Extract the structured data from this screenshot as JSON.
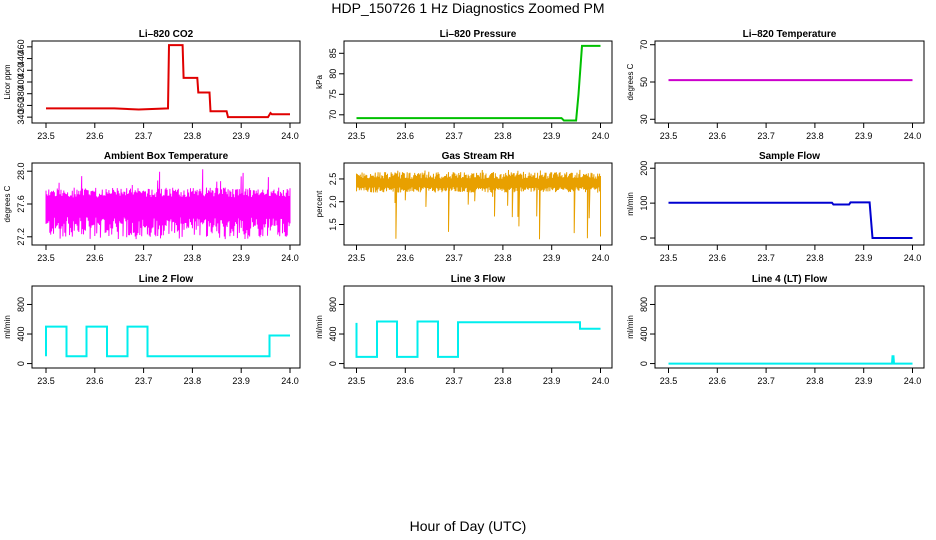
{
  "figure": {
    "title": "HDP_150726  1 Hz Diagnostics Zoomed PM",
    "xlabel": "Hour of Day (UTC)"
  },
  "chart_data": [
    {
      "type": "line",
      "title": "Li–820 CO2",
      "ylabel": "Licor ppm",
      "color": "#e00000",
      "xlim": [
        23.5,
        24.0
      ],
      "ylim": [
        330,
        470
      ],
      "xticks": [
        "23.5",
        "23.6",
        "23.7",
        "23.8",
        "23.9",
        "24.0"
      ],
      "yticks": [
        "340",
        "360",
        "380",
        "400",
        "420",
        "440",
        "460"
      ],
      "x": [
        23.5,
        23.58,
        23.64,
        23.69,
        23.75,
        23.752,
        23.78,
        23.782,
        23.81,
        23.812,
        23.835,
        23.837,
        23.87,
        23.873,
        23.95,
        23.955,
        23.96,
        23.963,
        24.0
      ],
      "y": [
        355,
        355,
        355,
        353,
        355,
        463,
        463,
        407,
        407,
        382,
        382,
        350,
        350,
        340,
        340,
        340,
        347,
        345,
        345
      ]
    },
    {
      "type": "line",
      "title": "Li–820 Pressure",
      "ylabel": "kPa",
      "color": "#00c000",
      "xlim": [
        23.5,
        24.0
      ],
      "ylim": [
        68,
        88
      ],
      "xticks": [
        "23.5",
        "23.6",
        "23.7",
        "23.8",
        "23.9",
        "24.0"
      ],
      "yticks": [
        "70",
        "75",
        "80",
        "85"
      ],
      "x": [
        23.5,
        23.92,
        23.925,
        23.95,
        23.955,
        23.962,
        23.97,
        24.0
      ],
      "y": [
        69.2,
        69.2,
        68.6,
        68.6,
        75,
        86.8,
        86.8,
        86.8
      ]
    },
    {
      "type": "line",
      "title": "Li–820 Temperature",
      "ylabel": "degrees C",
      "color": "#cc00cc",
      "xlim": [
        23.5,
        24.0
      ],
      "ylim": [
        28,
        72
      ],
      "xticks": [
        "23.5",
        "23.6",
        "23.7",
        "23.8",
        "23.9",
        "24.0"
      ],
      "yticks": [
        "30",
        "50",
        "70"
      ],
      "x": [
        23.5,
        24.0
      ],
      "y": [
        51,
        51
      ]
    },
    {
      "type": "line",
      "title": "Ambient Box Temperature",
      "ylabel": "degrees C",
      "color": "#ff00ff",
      "xlim": [
        23.5,
        24.0
      ],
      "ylim": [
        27.1,
        28.1
      ],
      "xticks": [
        "23.5",
        "23.6",
        "23.7",
        "23.8",
        "23.9",
        "24.0"
      ],
      "yticks": [
        "27.2",
        "27.6",
        "28.0"
      ],
      "x": [
        23.5,
        24.0
      ],
      "y": [
        27.6,
        27.6
      ],
      "noise": {
        "low": 27.2,
        "high": 27.8,
        "spike_low": 27.17,
        "spike_high": 28.03
      }
    },
    {
      "type": "line",
      "title": "Gas Stream RH",
      "ylabel": "percent",
      "color": "#e8a000",
      "xlim": [
        23.5,
        24.0
      ],
      "ylim": [
        1.05,
        2.85
      ],
      "xticks": [
        "23.5",
        "23.6",
        "23.7",
        "23.8",
        "23.9",
        "24.0"
      ],
      "yticks": [
        "1.5",
        "2.0",
        "2.5"
      ],
      "x": [
        23.5,
        24.0
      ],
      "y": [
        2.4,
        2.4
      ],
      "noise": {
        "low": 2.2,
        "high": 2.65,
        "spike_low": 1.15,
        "spike_high": 2.7
      }
    },
    {
      "type": "line",
      "title": "Sample Flow",
      "ylabel": "ml/min",
      "color": "#0000d0",
      "xlim": [
        23.5,
        24.0
      ],
      "ylim": [
        -20,
        215
      ],
      "xticks": [
        "23.5",
        "23.6",
        "23.7",
        "23.8",
        "23.9",
        "24.0"
      ],
      "yticks": [
        "0",
        "100",
        "200"
      ],
      "x": [
        23.5,
        23.835,
        23.838,
        23.87,
        23.873,
        23.912,
        23.918,
        23.925,
        24.0
      ],
      "y": [
        101,
        101,
        96,
        96,
        102,
        102,
        0,
        0,
        0
      ]
    },
    {
      "type": "line",
      "title": "Line 2 Flow",
      "ylabel": "ml/min",
      "color": "#00eeee",
      "xlim": [
        23.5,
        24.0
      ],
      "ylim": [
        -60,
        1050
      ],
      "xticks": [
        "23.5",
        "23.6",
        "23.7",
        "23.8",
        "23.9",
        "24.0"
      ],
      "yticks": [
        "0",
        "400",
        "800"
      ],
      "x": [
        23.5,
        23.5,
        23.542,
        23.542,
        23.583,
        23.583,
        23.625,
        23.625,
        23.667,
        23.667,
        23.708,
        23.708,
        23.958,
        23.958,
        24.0
      ],
      "y": [
        100,
        500,
        500,
        100,
        100,
        500,
        500,
        100,
        100,
        500,
        500,
        100,
        100,
        380,
        380
      ]
    },
    {
      "type": "line",
      "title": "Line 3 Flow",
      "ylabel": "ml/min",
      "color": "#00eeee",
      "xlim": [
        23.5,
        24.0
      ],
      "ylim": [
        -60,
        1050
      ],
      "xticks": [
        "23.5",
        "23.6",
        "23.7",
        "23.8",
        "23.9",
        "24.0"
      ],
      "yticks": [
        "0",
        "400",
        "800"
      ],
      "x": [
        23.5,
        23.5,
        23.542,
        23.542,
        23.583,
        23.583,
        23.625,
        23.625,
        23.667,
        23.667,
        23.708,
        23.708,
        23.958,
        23.958,
        24.0
      ],
      "y": [
        550,
        90,
        90,
        570,
        570,
        90,
        90,
        570,
        570,
        90,
        90,
        560,
        560,
        470,
        470
      ]
    },
    {
      "type": "line",
      "title": "Line 4 (LT) Flow",
      "ylabel": "ml/min",
      "color": "#00eeee",
      "xlim": [
        23.5,
        24.0
      ],
      "ylim": [
        -60,
        1050
      ],
      "xticks": [
        "23.5",
        "23.6",
        "23.7",
        "23.8",
        "23.9",
        "24.0"
      ],
      "yticks": [
        "0",
        "400",
        "800"
      ],
      "x": [
        23.5,
        23.958,
        23.959,
        23.961,
        23.962,
        24.0
      ],
      "y": [
        0,
        0,
        100,
        100,
        0,
        0
      ]
    }
  ]
}
